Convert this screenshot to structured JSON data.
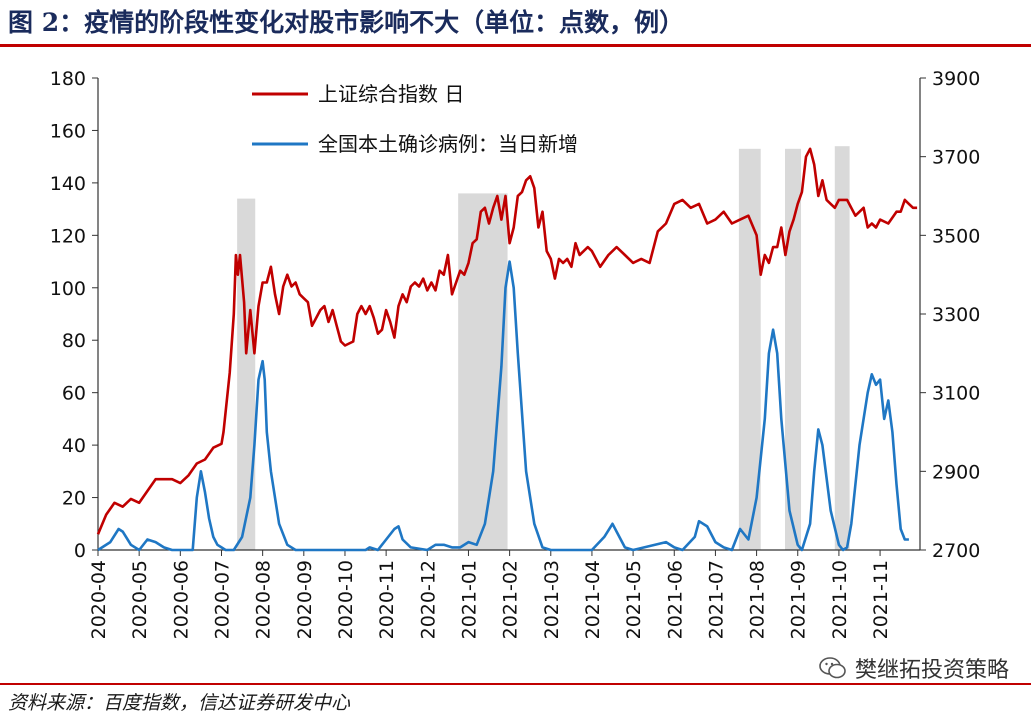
{
  "title": "图 2：疫情的阶段性变化对股市影响不大（单位：点数，例）",
  "source": "资料来源：百度指数，信达证券研发中心",
  "watermark": "樊继拓投资策略",
  "chart_data": {
    "type": "line",
    "x_ticks": [
      "2020-04",
      "2020-05",
      "2020-06",
      "2020-07",
      "2020-08",
      "2020-09",
      "2020-10",
      "2020-11",
      "2020-12",
      "2021-01",
      "2021-02",
      "2021-03",
      "2021-04",
      "2021-05",
      "2021-06",
      "2021-07",
      "2021-08",
      "2021-09",
      "2021-10",
      "2021-11"
    ],
    "y_left": {
      "ticks": [
        0,
        20,
        40,
        60,
        80,
        100,
        120,
        140,
        160,
        180
      ],
      "range": [
        0,
        180
      ]
    },
    "y_right": {
      "ticks": [
        2700,
        2900,
        3100,
        3300,
        3500,
        3700,
        3900
      ],
      "range": [
        2700,
        3900
      ]
    },
    "x_range": [
      0,
      19.97
    ],
    "shaded_periods": [
      [
        3.38,
        3.82
      ],
      [
        8.75,
        9.95
      ],
      [
        15.57,
        16.1
      ],
      [
        16.69,
        17.08
      ],
      [
        17.9,
        18.26
      ]
    ],
    "legend_position": "top-center",
    "series": [
      {
        "name": "上证综合指数  日",
        "axis": "right",
        "color": "#c00000",
        "points": [
          [
            0,
            2740
          ],
          [
            0.2,
            2790
          ],
          [
            0.4,
            2820
          ],
          [
            0.6,
            2810
          ],
          [
            0.8,
            2830
          ],
          [
            1.0,
            2820
          ],
          [
            1.2,
            2850
          ],
          [
            1.4,
            2880
          ],
          [
            1.6,
            2880
          ],
          [
            1.8,
            2880
          ],
          [
            2.0,
            2870
          ],
          [
            2.2,
            2890
          ],
          [
            2.4,
            2920
          ],
          [
            2.6,
            2930
          ],
          [
            2.8,
            2960
          ],
          [
            3.0,
            2970
          ],
          [
            3.05,
            3000
          ],
          [
            3.2,
            3150
          ],
          [
            3.3,
            3300
          ],
          [
            3.35,
            3450
          ],
          [
            3.4,
            3400
          ],
          [
            3.45,
            3450
          ],
          [
            3.55,
            3330
          ],
          [
            3.6,
            3200
          ],
          [
            3.7,
            3310
          ],
          [
            3.8,
            3200
          ],
          [
            3.9,
            3320
          ],
          [
            4.0,
            3380
          ],
          [
            4.1,
            3380
          ],
          [
            4.2,
            3420
          ],
          [
            4.3,
            3350
          ],
          [
            4.4,
            3300
          ],
          [
            4.5,
            3370
          ],
          [
            4.6,
            3400
          ],
          [
            4.7,
            3370
          ],
          [
            4.8,
            3380
          ],
          [
            4.9,
            3350
          ],
          [
            5.0,
            3340
          ],
          [
            5.1,
            3330
          ],
          [
            5.2,
            3270
          ],
          [
            5.3,
            3290
          ],
          [
            5.4,
            3310
          ],
          [
            5.5,
            3320
          ],
          [
            5.6,
            3280
          ],
          [
            5.7,
            3310
          ],
          [
            5.8,
            3270
          ],
          [
            5.9,
            3230
          ],
          [
            6.0,
            3220
          ],
          [
            6.2,
            3230
          ],
          [
            6.3,
            3300
          ],
          [
            6.4,
            3320
          ],
          [
            6.5,
            3300
          ],
          [
            6.6,
            3320
          ],
          [
            6.7,
            3290
          ],
          [
            6.8,
            3250
          ],
          [
            6.9,
            3260
          ],
          [
            7.0,
            3310
          ],
          [
            7.1,
            3280
          ],
          [
            7.2,
            3240
          ],
          [
            7.3,
            3320
          ],
          [
            7.4,
            3350
          ],
          [
            7.5,
            3330
          ],
          [
            7.6,
            3370
          ],
          [
            7.7,
            3380
          ],
          [
            7.8,
            3370
          ],
          [
            7.9,
            3390
          ],
          [
            8.0,
            3360
          ],
          [
            8.1,
            3380
          ],
          [
            8.2,
            3360
          ],
          [
            8.3,
            3410
          ],
          [
            8.4,
            3400
          ],
          [
            8.5,
            3450
          ],
          [
            8.6,
            3350
          ],
          [
            8.7,
            3380
          ],
          [
            8.8,
            3410
          ],
          [
            8.9,
            3400
          ],
          [
            9.0,
            3430
          ],
          [
            9.1,
            3480
          ],
          [
            9.2,
            3490
          ],
          [
            9.3,
            3560
          ],
          [
            9.4,
            3570
          ],
          [
            9.5,
            3530
          ],
          [
            9.6,
            3570
          ],
          [
            9.7,
            3600
          ],
          [
            9.8,
            3540
          ],
          [
            9.9,
            3600
          ],
          [
            10.0,
            3480
          ],
          [
            10.1,
            3520
          ],
          [
            10.2,
            3600
          ],
          [
            10.3,
            3610
          ],
          [
            10.4,
            3640
          ],
          [
            10.5,
            3650
          ],
          [
            10.6,
            3620
          ],
          [
            10.7,
            3520
          ],
          [
            10.8,
            3560
          ],
          [
            10.9,
            3460
          ],
          [
            11.0,
            3440
          ],
          [
            11.1,
            3390
          ],
          [
            11.2,
            3440
          ],
          [
            11.3,
            3430
          ],
          [
            11.4,
            3440
          ],
          [
            11.5,
            3420
          ],
          [
            11.6,
            3480
          ],
          [
            11.7,
            3450
          ],
          [
            11.8,
            3460
          ],
          [
            11.9,
            3470
          ],
          [
            12.0,
            3460
          ],
          [
            12.2,
            3420
          ],
          [
            12.4,
            3450
          ],
          [
            12.6,
            3470
          ],
          [
            12.8,
            3450
          ],
          [
            13.0,
            3430
          ],
          [
            13.2,
            3440
          ],
          [
            13.4,
            3430
          ],
          [
            13.6,
            3510
          ],
          [
            13.8,
            3530
          ],
          [
            14.0,
            3580
          ],
          [
            14.2,
            3590
          ],
          [
            14.4,
            3570
          ],
          [
            14.6,
            3580
          ],
          [
            14.8,
            3530
          ],
          [
            15.0,
            3540
          ],
          [
            15.2,
            3560
          ],
          [
            15.4,
            3530
          ],
          [
            15.6,
            3540
          ],
          [
            15.8,
            3550
          ],
          [
            16.0,
            3500
          ],
          [
            16.1,
            3400
          ],
          [
            16.2,
            3450
          ],
          [
            16.3,
            3430
          ],
          [
            16.4,
            3470
          ],
          [
            16.5,
            3470
          ],
          [
            16.6,
            3520
          ],
          [
            16.7,
            3450
          ],
          [
            16.8,
            3510
          ],
          [
            16.9,
            3540
          ],
          [
            17.0,
            3580
          ],
          [
            17.1,
            3610
          ],
          [
            17.2,
            3700
          ],
          [
            17.3,
            3720
          ],
          [
            17.4,
            3680
          ],
          [
            17.5,
            3600
          ],
          [
            17.6,
            3640
          ],
          [
            17.7,
            3590
          ],
          [
            17.8,
            3580
          ],
          [
            17.9,
            3570
          ],
          [
            18.0,
            3590
          ],
          [
            18.2,
            3590
          ],
          [
            18.4,
            3550
          ],
          [
            18.6,
            3570
          ],
          [
            18.7,
            3520
          ],
          [
            18.8,
            3530
          ],
          [
            18.9,
            3520
          ],
          [
            19.0,
            3540
          ],
          [
            19.2,
            3530
          ],
          [
            19.4,
            3560
          ],
          [
            19.5,
            3560
          ],
          [
            19.6,
            3590
          ],
          [
            19.7,
            3580
          ],
          [
            19.8,
            3570
          ],
          [
            19.9,
            3570
          ]
        ]
      },
      {
        "name": "全国本土确诊病例：当日新增",
        "axis": "left",
        "color": "#1f77c4",
        "points": [
          [
            0,
            0
          ],
          [
            0.3,
            3
          ],
          [
            0.5,
            8
          ],
          [
            0.6,
            7
          ],
          [
            0.8,
            2
          ],
          [
            1.0,
            0
          ],
          [
            1.2,
            4
          ],
          [
            1.4,
            3
          ],
          [
            1.6,
            1
          ],
          [
            1.8,
            0
          ],
          [
            2.0,
            0
          ],
          [
            2.3,
            0
          ],
          [
            2.4,
            20
          ],
          [
            2.5,
            30
          ],
          [
            2.6,
            22
          ],
          [
            2.7,
            12
          ],
          [
            2.8,
            5
          ],
          [
            2.9,
            2
          ],
          [
            3.0,
            1
          ],
          [
            3.1,
            0
          ],
          [
            3.3,
            0
          ],
          [
            3.5,
            5
          ],
          [
            3.7,
            20
          ],
          [
            3.8,
            40
          ],
          [
            3.9,
            65
          ],
          [
            4.0,
            72
          ],
          [
            4.05,
            65
          ],
          [
            4.1,
            45
          ],
          [
            4.2,
            30
          ],
          [
            4.4,
            10
          ],
          [
            4.6,
            2
          ],
          [
            4.8,
            0
          ],
          [
            5.2,
            0
          ],
          [
            6.5,
            0
          ],
          [
            6.6,
            1
          ],
          [
            6.8,
            0
          ],
          [
            7.2,
            8
          ],
          [
            7.3,
            9
          ],
          [
            7.4,
            4
          ],
          [
            7.6,
            1
          ],
          [
            8.0,
            0
          ],
          [
            8.2,
            2
          ],
          [
            8.4,
            2
          ],
          [
            8.6,
            1
          ],
          [
            8.8,
            1
          ],
          [
            9.0,
            3
          ],
          [
            9.2,
            2
          ],
          [
            9.4,
            10
          ],
          [
            9.6,
            30
          ],
          [
            9.8,
            70
          ],
          [
            9.9,
            100
          ],
          [
            10.0,
            110
          ],
          [
            10.1,
            100
          ],
          [
            10.2,
            75
          ],
          [
            10.4,
            30
          ],
          [
            10.6,
            10
          ],
          [
            10.8,
            1
          ],
          [
            11.0,
            0
          ],
          [
            12.0,
            0
          ],
          [
            12.3,
            5
          ],
          [
            12.5,
            10
          ],
          [
            12.6,
            7
          ],
          [
            12.8,
            1
          ],
          [
            13.0,
            0
          ],
          [
            13.8,
            3
          ],
          [
            14.0,
            1
          ],
          [
            14.2,
            0
          ],
          [
            14.5,
            5
          ],
          [
            14.6,
            11
          ],
          [
            14.8,
            9
          ],
          [
            15.0,
            3
          ],
          [
            15.2,
            1
          ],
          [
            15.4,
            0
          ],
          [
            15.6,
            8
          ],
          [
            15.8,
            4
          ],
          [
            16.0,
            20
          ],
          [
            16.2,
            50
          ],
          [
            16.3,
            75
          ],
          [
            16.4,
            84
          ],
          [
            16.5,
            75
          ],
          [
            16.6,
            50
          ],
          [
            16.8,
            15
          ],
          [
            17.0,
            2
          ],
          [
            17.1,
            0
          ],
          [
            17.3,
            10
          ],
          [
            17.4,
            30
          ],
          [
            17.5,
            46
          ],
          [
            17.6,
            40
          ],
          [
            17.8,
            15
          ],
          [
            18.0,
            2
          ],
          [
            18.1,
            0
          ],
          [
            18.2,
            1
          ],
          [
            18.3,
            10
          ],
          [
            18.5,
            40
          ],
          [
            18.7,
            60
          ],
          [
            18.8,
            67
          ],
          [
            18.9,
            63
          ],
          [
            19.0,
            65
          ],
          [
            19.1,
            50
          ],
          [
            19.2,
            57
          ],
          [
            19.3,
            45
          ],
          [
            19.4,
            25
          ],
          [
            19.5,
            8
          ],
          [
            19.6,
            4
          ],
          [
            19.7,
            4
          ]
        ]
      }
    ]
  }
}
